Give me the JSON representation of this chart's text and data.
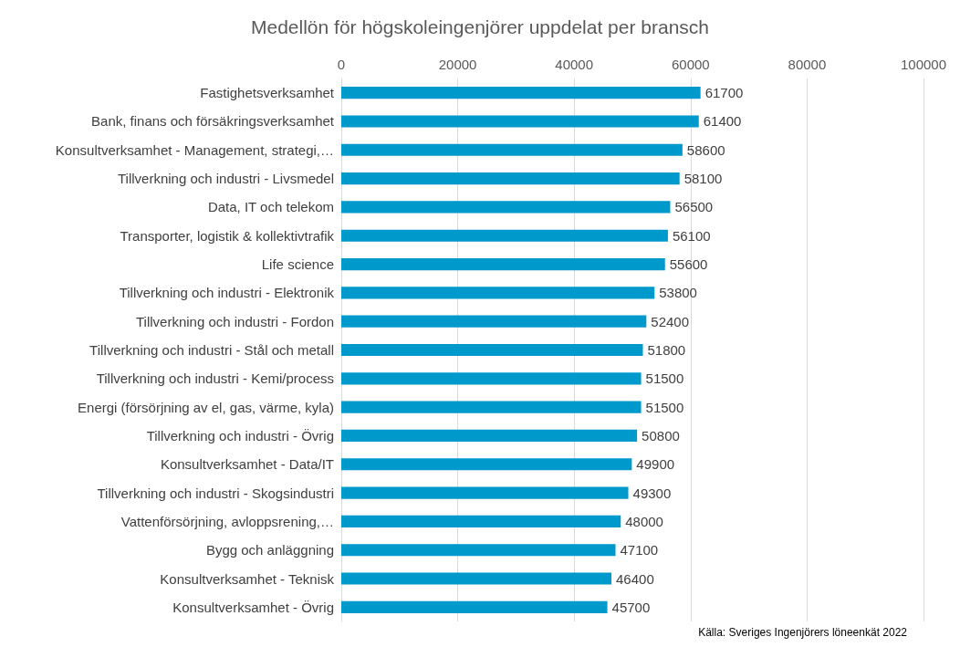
{
  "chart_data": {
    "type": "bar",
    "orientation": "horizontal",
    "title": "Medellön för högskoleingenjörer uppdelat per bransch",
    "categories": [
      "Fastighetsverksamhet",
      "Bank, finans och försäkringsverksamhet",
      "Konsultverksamhet - Management, strategi,…",
      "Tillverkning och industri - Livsmedel",
      "Data, IT och telekom",
      "Transporter, logistik & kollektivtrafik",
      "Life science",
      "Tillverkning och industri - Elektronik",
      "Tillverkning och industri - Fordon",
      "Tillverkning och industri - Stål och metall",
      "Tillverkning och industri - Kemi/process",
      "Energi (försörjning av el, gas, värme, kyla)",
      "Tillverkning och industri - Övrig",
      "Konsultverksamhet - Data/IT",
      "Tillverkning och industri - Skogsindustri",
      "Vattenförsörjning, avloppsrening,…",
      "Bygg och anläggning",
      "Konsultverksamhet - Teknisk",
      "Konsultverksamhet - Övrig"
    ],
    "values": [
      61700,
      61400,
      58600,
      58100,
      56500,
      56100,
      55600,
      53800,
      52400,
      51800,
      51500,
      51500,
      50800,
      49900,
      49300,
      48000,
      47100,
      46400,
      45700
    ],
    "color": "#0099cc",
    "xlim": [
      0,
      100000
    ],
    "xticks": [
      0,
      20000,
      40000,
      60000,
      80000,
      100000
    ],
    "grid": "x",
    "data_labels": true,
    "annotations": [
      "Källa: Sveriges Ingenjörers löneenkät 2022"
    ]
  }
}
